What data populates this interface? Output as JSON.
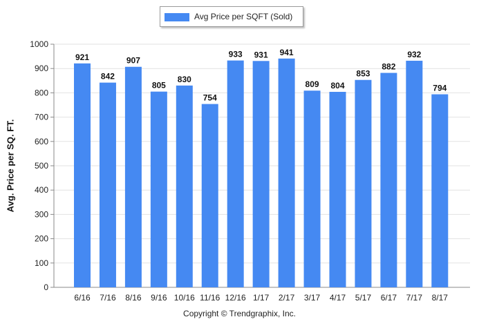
{
  "chart_data": {
    "type": "bar",
    "categories": [
      "6/16",
      "7/16",
      "8/16",
      "9/16",
      "10/16",
      "11/16",
      "12/16",
      "1/17",
      "2/17",
      "3/17",
      "4/17",
      "5/17",
      "6/17",
      "7/17",
      "8/17"
    ],
    "series": [
      {
        "name": "Avg Price per SQFT (Sold)",
        "values": [
          921,
          842,
          907,
          805,
          830,
          754,
          933,
          931,
          941,
          809,
          804,
          853,
          882,
          932,
          794
        ]
      }
    ],
    "ylabel": "Avg. Price per SQ. FT.",
    "xlabel": "",
    "ylim": [
      0,
      1000
    ],
    "yticks": [
      0,
      100,
      200,
      300,
      400,
      500,
      600,
      700,
      800,
      900,
      1000
    ],
    "grid": true,
    "legend_position": "top-center",
    "bar_color": "#4589f2",
    "data_labels": true
  },
  "footer": {
    "copyright": "Copyright © Trendgraphix, Inc."
  }
}
